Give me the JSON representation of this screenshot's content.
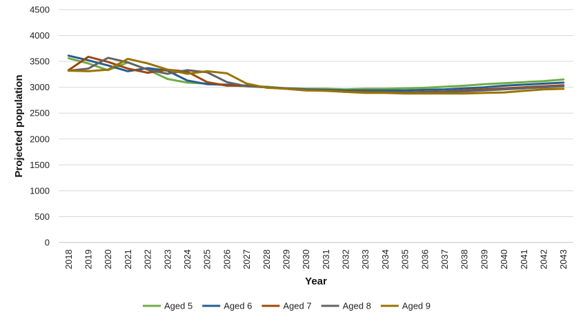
{
  "chart_data": {
    "type": "line",
    "xlabel": "Year",
    "ylabel": "Projected population",
    "ylim": [
      0,
      4500
    ],
    "yticks": [
      0,
      500,
      1000,
      1500,
      2000,
      2500,
      3000,
      3500,
      4000,
      4500
    ],
    "grid": "horizontal",
    "legend": "bottom",
    "x": [
      "2018",
      "2019",
      "2020",
      "2021",
      "2022",
      "2023",
      "2024",
      "2025",
      "2026",
      "2027",
      "2028",
      "2029",
      "2030",
      "2031",
      "2032",
      "2033",
      "2034",
      "2035",
      "2036",
      "2037",
      "2038",
      "2039",
      "2040",
      "2041",
      "2042",
      "2043"
    ],
    "series": [
      {
        "name": "Aged 5",
        "color": "#70AD47",
        "values": [
          3560,
          3460,
          3330,
          3480,
          3340,
          3160,
          3090,
          3070,
          3040,
          3020,
          3010,
          2980,
          2970,
          2970,
          2960,
          2970,
          2970,
          2980,
          2990,
          3010,
          3030,
          3060,
          3080,
          3100,
          3120,
          3150
        ]
      },
      {
        "name": "Aged 6",
        "color": "#255E91",
        "values": [
          3610,
          3520,
          3420,
          3310,
          3370,
          3320,
          3130,
          3060,
          3050,
          3030,
          3000,
          2980,
          2960,
          2950,
          2940,
          2940,
          2940,
          2940,
          2950,
          2960,
          2980,
          3000,
          3030,
          3050,
          3070,
          3090
        ]
      },
      {
        "name": "Aged 7",
        "color": "#9E480E",
        "values": [
          3330,
          3590,
          3490,
          3360,
          3280,
          3340,
          3300,
          3100,
          3030,
          3030,
          3000,
          2970,
          2940,
          2940,
          2920,
          2920,
          2910,
          2900,
          2910,
          2920,
          2940,
          2960,
          2980,
          3000,
          3020,
          3040
        ]
      },
      {
        "name": "Aged 8",
        "color": "#636363",
        "values": [
          3320,
          3360,
          3570,
          3480,
          3340,
          3260,
          3330,
          3290,
          3100,
          3020,
          3000,
          2970,
          2950,
          2940,
          2910,
          2910,
          2910,
          2900,
          2900,
          2910,
          2920,
          2940,
          2960,
          2980,
          3000,
          3020
        ]
      },
      {
        "name": "Aged 9",
        "color": "#997300",
        "values": [
          3320,
          3310,
          3340,
          3550,
          3460,
          3340,
          3260,
          3310,
          3270,
          3070,
          2990,
          2970,
          2940,
          2930,
          2910,
          2890,
          2890,
          2880,
          2880,
          2880,
          2880,
          2890,
          2900,
          2930,
          2960,
          2970
        ]
      }
    ]
  }
}
